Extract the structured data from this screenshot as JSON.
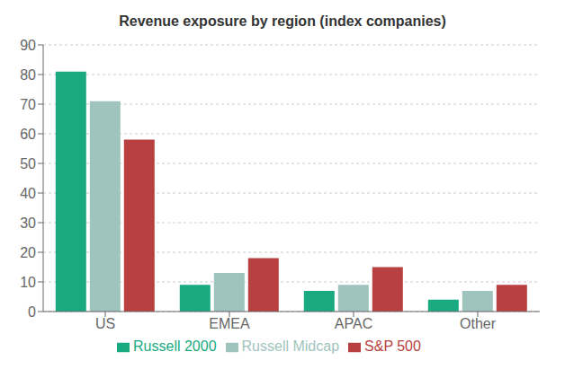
{
  "chart_data": {
    "type": "bar",
    "title": "Revenue exposure by region (index companies)",
    "categories": [
      "US",
      "EMEA",
      "APAC",
      "Other"
    ],
    "series": [
      {
        "name": "Russell 2000",
        "color": "#1aaa82",
        "values": [
          81,
          9,
          7,
          4
        ]
      },
      {
        "name": "Russell Midcap",
        "color": "#9fc4be",
        "values": [
          71,
          13,
          9,
          7
        ]
      },
      {
        "name": "S&P 500",
        "color": "#b84040",
        "values": [
          58,
          18,
          15,
          9
        ]
      }
    ],
    "ylim": [
      0,
      90
    ],
    "yticks": [
      0,
      10,
      20,
      30,
      40,
      50,
      60,
      70,
      80,
      90
    ],
    "grid": true,
    "legend": "bottom"
  }
}
